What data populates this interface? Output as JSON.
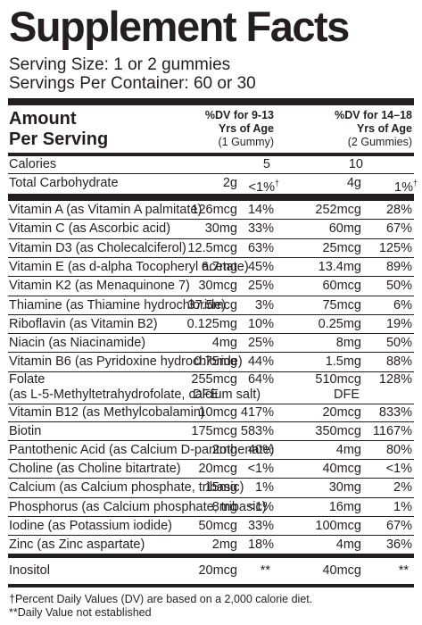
{
  "title": "Supplement Facts",
  "serving_size": "Serving Size: 1 or 2 gummies",
  "servings_per_container": "Servings Per Container: 60 or 30",
  "header": {
    "amount_line1": "Amount",
    "amount_line2": "Per Serving",
    "col1_line1": "%DV for 9-13",
    "col1_line2": "Yrs of Age",
    "col1_line3": "(1 Gummy)",
    "col2_line1": "%DV for 14–18",
    "col2_line2": "Yrs of Age",
    "col2_line3": "(2 Gummies)"
  },
  "calories": {
    "label": "Calories",
    "amount1": "5",
    "amount2": "10"
  },
  "carbs": {
    "label": "Total Carbohydrate",
    "amount1": "2g",
    "pct1": "<1%",
    "amount2": "4g",
    "pct2": "1%",
    "mark": "†"
  },
  "nutrients": [
    {
      "label": "Vitamin A (as Vitamin A palmitate)",
      "amount1": "126mcg",
      "pct1": "14%",
      "amount2": "252mcg",
      "pct2": "28%"
    },
    {
      "label": "Vitamin C (as Ascorbic acid)",
      "amount1": "30mg",
      "pct1": "33%",
      "amount2": "60mg",
      "pct2": "67%"
    },
    {
      "label": "Vitamin D3 (as Cholecalciferol)",
      "amount1": "12.5mcg",
      "pct1": "63%",
      "amount2": "25mcg",
      "pct2": "125%"
    },
    {
      "label": "Vitamin E (as d-alpha Tocopheryl acetate)",
      "amount1": "6.7mg",
      "pct1": "45%",
      "amount2": "13.4mg",
      "pct2": "89%"
    },
    {
      "label": "Vitamin K2 (as Menaquinone 7)",
      "amount1": "30mcg",
      "pct1": "25%",
      "amount2": "60mcg",
      "pct2": "50%"
    },
    {
      "label": "Thiamine (as Thiamine hydrochloride)",
      "amount1": "37.5mcg",
      "pct1": "3%",
      "amount2": "75mcg",
      "pct2": "6%"
    },
    {
      "label": "Riboflavin (as Vitamin B2)",
      "amount1": "0.125mg",
      "pct1": "10%",
      "amount2": "0.25mg",
      "pct2": "19%"
    },
    {
      "label": "Niacin (as Niacinamide)",
      "amount1": "4mg",
      "pct1": "25%",
      "amount2": "8mg",
      "pct2": "50%"
    },
    {
      "label": "Vitamin B6 (as Pyridoxine hydrochloride)",
      "amount1": "0.75mg",
      "pct1": "44%",
      "amount2": "1.5mg",
      "pct2": "88%"
    }
  ],
  "folate": {
    "label": "Folate",
    "label2": "(as L-5-Methyltetrahydrofolate, calcium salt)",
    "amount1": "255mcg",
    "unit1": "DFE",
    "pct1": "64%",
    "amount2": "510mcg",
    "unit2": "DFE",
    "pct2": "128%"
  },
  "nutrients2": [
    {
      "label": "Vitamin B12 (as Methylcobalamin)",
      "amount1": "10mcg",
      "pct1": "417%",
      "amount2": "20mcg",
      "pct2": "833%"
    },
    {
      "label": "Biotin",
      "amount1": "175mcg",
      "pct1": "583%",
      "amount2": "350mcg",
      "pct2": "1167%"
    },
    {
      "label": "Pantothenic Acid (as Calcium D-pantothenate)",
      "amount1": "2mg",
      "pct1": "40%",
      "amount2": "4mg",
      "pct2": "80%"
    },
    {
      "label": "Choline (as Choline bitartrate)",
      "amount1": "20mcg",
      "pct1": "<1%",
      "amount2": "40mcg",
      "pct2": "<1%"
    },
    {
      "label": "Calcium (as Calcium phosphate, tribasic)",
      "amount1": "15mg",
      "pct1": "1%",
      "amount2": "30mg",
      "pct2": "2%"
    },
    {
      "label": "Phosphorus (as Calcium phosphate, tribasic)",
      "amount1": "8mg",
      "pct1": "<1%",
      "amount2": "16mg",
      "pct2": "1%"
    },
    {
      "label": "Iodine (as Potassium iodide)",
      "amount1": "50mcg",
      "pct1": "33%",
      "amount2": "100mcg",
      "pct2": "67%"
    },
    {
      "label": "Zinc (as Zinc aspartate)",
      "amount1": "2mg",
      "pct1": "18%",
      "amount2": "4mg",
      "pct2": "36%"
    }
  ],
  "inositol": {
    "label": "Inositol",
    "amount1": "20mcg",
    "pct1": "**",
    "amount2": "40mcg",
    "pct2": "**"
  },
  "footnote1": "†Percent Daily Values (DV) are based on a 2,000 calorie diet.",
  "footnote2": "**Daily Value not established"
}
